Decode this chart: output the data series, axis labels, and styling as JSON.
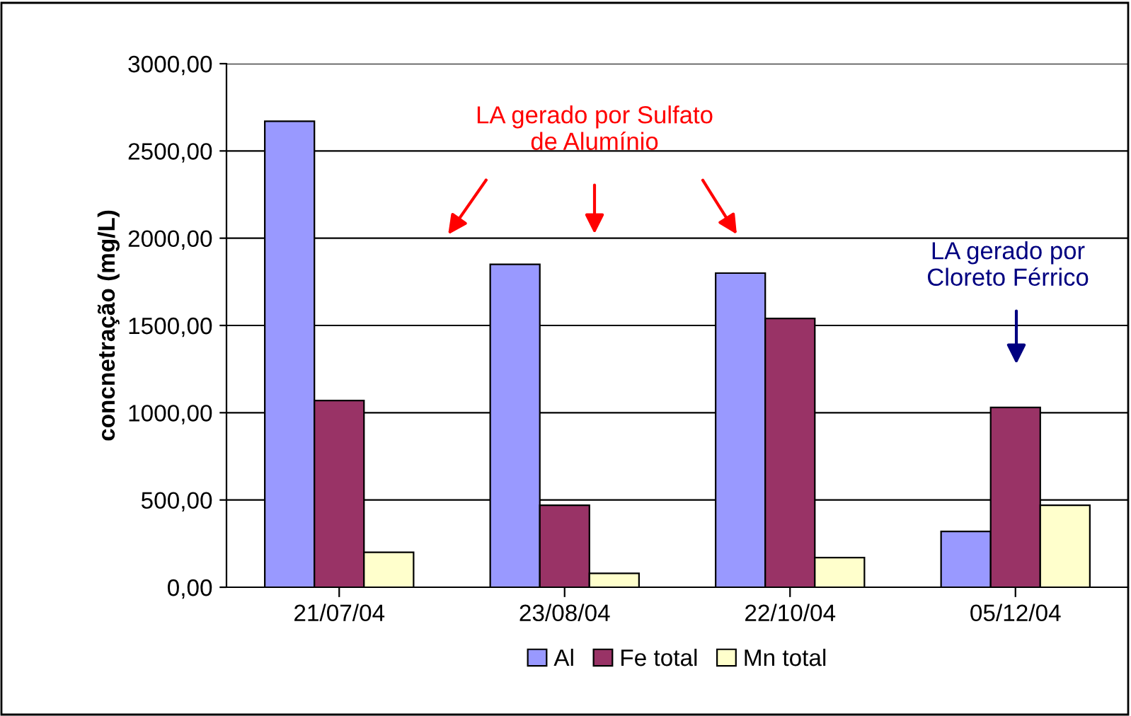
{
  "chart_data": {
    "type": "bar",
    "ylabel": "concnetração (mg/L)",
    "categories": [
      "21/07/04",
      "23/08/04",
      "22/10/04",
      "05/12/04"
    ],
    "series": [
      {
        "name": "Al",
        "color": "#9999ff",
        "values": [
          2670,
          1850,
          1800,
          320
        ]
      },
      {
        "name": "Fe total",
        "color": "#993366",
        "values": [
          1070,
          470,
          1540,
          1030
        ]
      },
      {
        "name": "Mn total",
        "color": "#ffffcc",
        "values": [
          200,
          80,
          170,
          470
        ]
      }
    ],
    "ylim": [
      0,
      3000
    ],
    "yticks": [
      {
        "value": 0,
        "label": "0,00"
      },
      {
        "value": 500,
        "label": "500,00"
      },
      {
        "value": 1000,
        "label": "1000,00"
      },
      {
        "value": 1500,
        "label": "1500,00"
      },
      {
        "value": 2000,
        "label": "2000,00"
      },
      {
        "value": 2500,
        "label": "2500,00"
      },
      {
        "value": 3000,
        "label": "3000,00"
      }
    ],
    "grid": "y",
    "legend": "bottom",
    "annotations": [
      "LA gerado por Sulfato\nde Alumínio",
      "LA gerado por\nCloreto Férrico"
    ]
  }
}
